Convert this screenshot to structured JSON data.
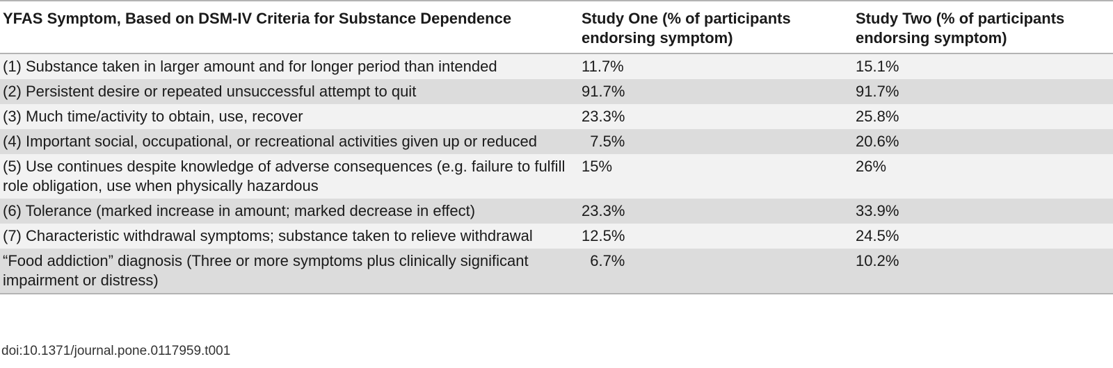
{
  "table": {
    "headers": [
      "YFAS Symptom, Based on DSM-IV Criteria for Substance Dependence",
      "Study One (% of participants endorsing symptom)",
      "Study Two (% of participants endorsing symptom)"
    ],
    "rows": [
      {
        "symptom": "(1) Substance taken in larger amount and for longer period than intended",
        "study_one": "11.7%",
        "study_two": "15.1%"
      },
      {
        "symptom": "(2) Persistent desire or repeated unsuccessful attempt to quit",
        "study_one": "91.7%",
        "study_two": "91.7%"
      },
      {
        "symptom": "(3) Much time/activity to obtain, use, recover",
        "study_one": "23.3%",
        "study_two": "25.8%"
      },
      {
        "symptom": "(4) Important social, occupational, or recreational activities given up or reduced",
        "study_one": "  7.5%",
        "study_two": "20.6%"
      },
      {
        "symptom": "(5) Use continues despite knowledge of adverse consequences (e.g. failure to fulfill role obligation, use when physically hazardous",
        "study_one": "15%",
        "study_two": "26%"
      },
      {
        "symptom": "(6) Tolerance (marked increase in amount; marked decrease in effect)",
        "study_one": "23.3%",
        "study_two": "33.9%"
      },
      {
        "symptom": "(7) Characteristic withdrawal symptoms; substance taken to relieve withdrawal",
        "study_one": "12.5%",
        "study_two": "24.5%"
      },
      {
        "symptom": "“Food addiction” diagnosis (Three or more symptoms plus clinically significant impairment or distress)",
        "study_one": "  6.7%",
        "study_two": "10.2%"
      }
    ]
  },
  "footnote": "doi:10.1371/journal.pone.0117959.t001"
}
